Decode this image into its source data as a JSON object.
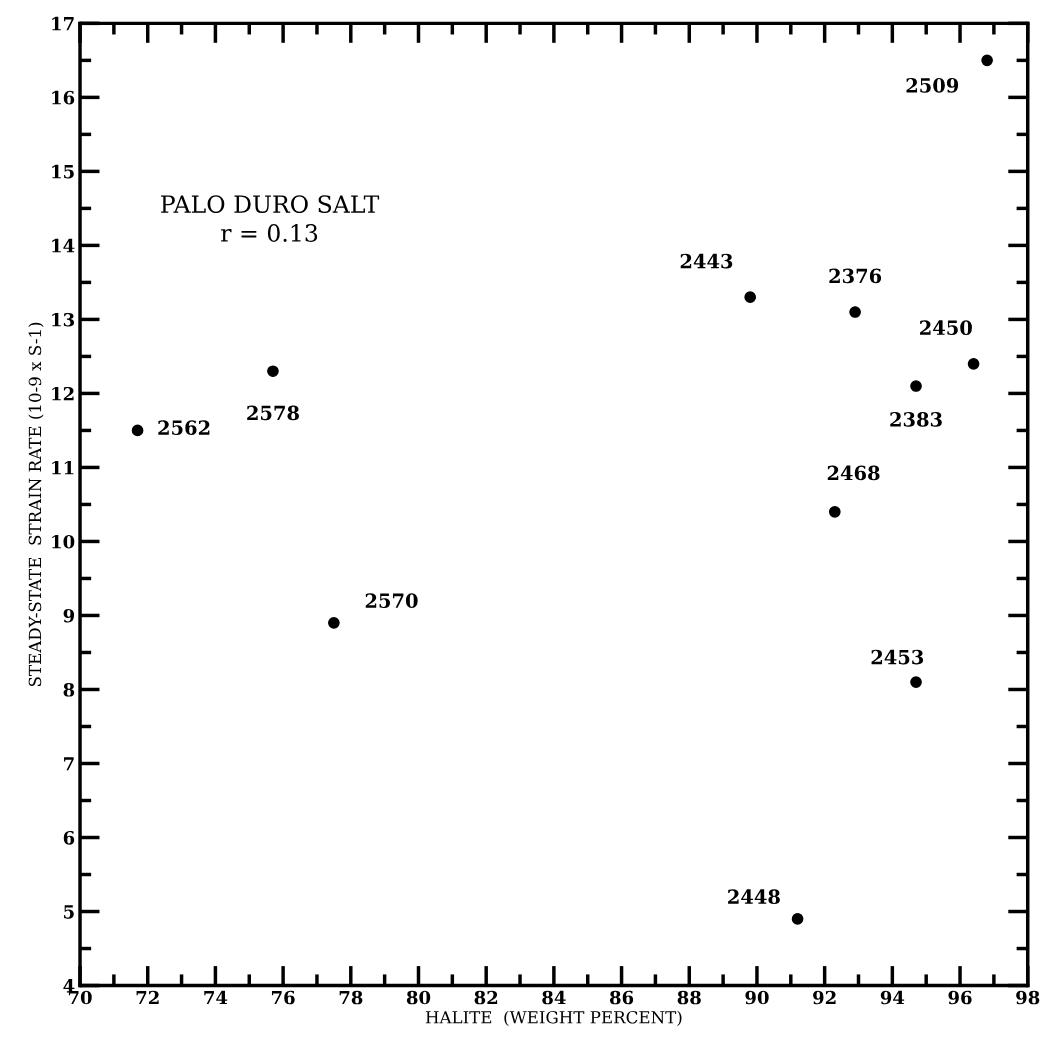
{
  "chart_data": {
    "type": "scatter",
    "xlabel": "HALITE  (WEIGHT PERCENT)",
    "ylabel": "STEADY-STATE  STRAIN RATE (10-9 x S-1)",
    "x": [
      71.7,
      75.7,
      77.5,
      89.8,
      92.9,
      96.4,
      94.7,
      92.3,
      94.7,
      91.2,
      96.8
    ],
    "series": [
      {
        "color": "#000000",
        "values": [
          11.5,
          12.3,
          8.9,
          13.3,
          13.1,
          12.4,
          12.1,
          10.4,
          8.1,
          4.9,
          16.5
        ]
      }
    ],
    "marker": "circle",
    "grid": false,
    "legend": false,
    "xlim": [
      70,
      98
    ],
    "xticks": [
      70,
      72,
      74,
      76,
      78,
      80,
      82,
      84,
      86,
      88,
      90,
      92,
      94,
      96,
      98
    ],
    "ylim": [
      4,
      17
    ],
    "yticks": [
      4,
      5,
      6,
      7,
      8,
      9,
      10,
      11,
      12,
      13,
      14,
      15,
      16,
      17
    ],
    "annotations": [
      "PALO DURO SALT",
      "r = 0.13",
      {
        "text": "2562",
        "x": 71.7,
        "y": 11.5
      },
      {
        "text": "2578",
        "x": 75.7,
        "y": 12.3
      },
      {
        "text": "2570",
        "x": 77.5,
        "y": 8.9
      },
      {
        "text": "2443",
        "x": 89.8,
        "y": 13.3
      },
      {
        "text": "2376",
        "x": 92.9,
        "y": 13.1
      },
      {
        "text": "2450",
        "x": 96.4,
        "y": 12.4
      },
      {
        "text": "2383",
        "x": 94.7,
        "y": 12.1
      },
      {
        "text": "2468",
        "x": 92.3,
        "y": 10.4
      },
      {
        "text": "2453",
        "x": 94.7,
        "y": 8.1
      },
      {
        "text": "2448",
        "x": 91.2,
        "y": 4.9
      },
      {
        "text": "2509",
        "x": 96.8,
        "y": 16.5
      }
    ]
  }
}
